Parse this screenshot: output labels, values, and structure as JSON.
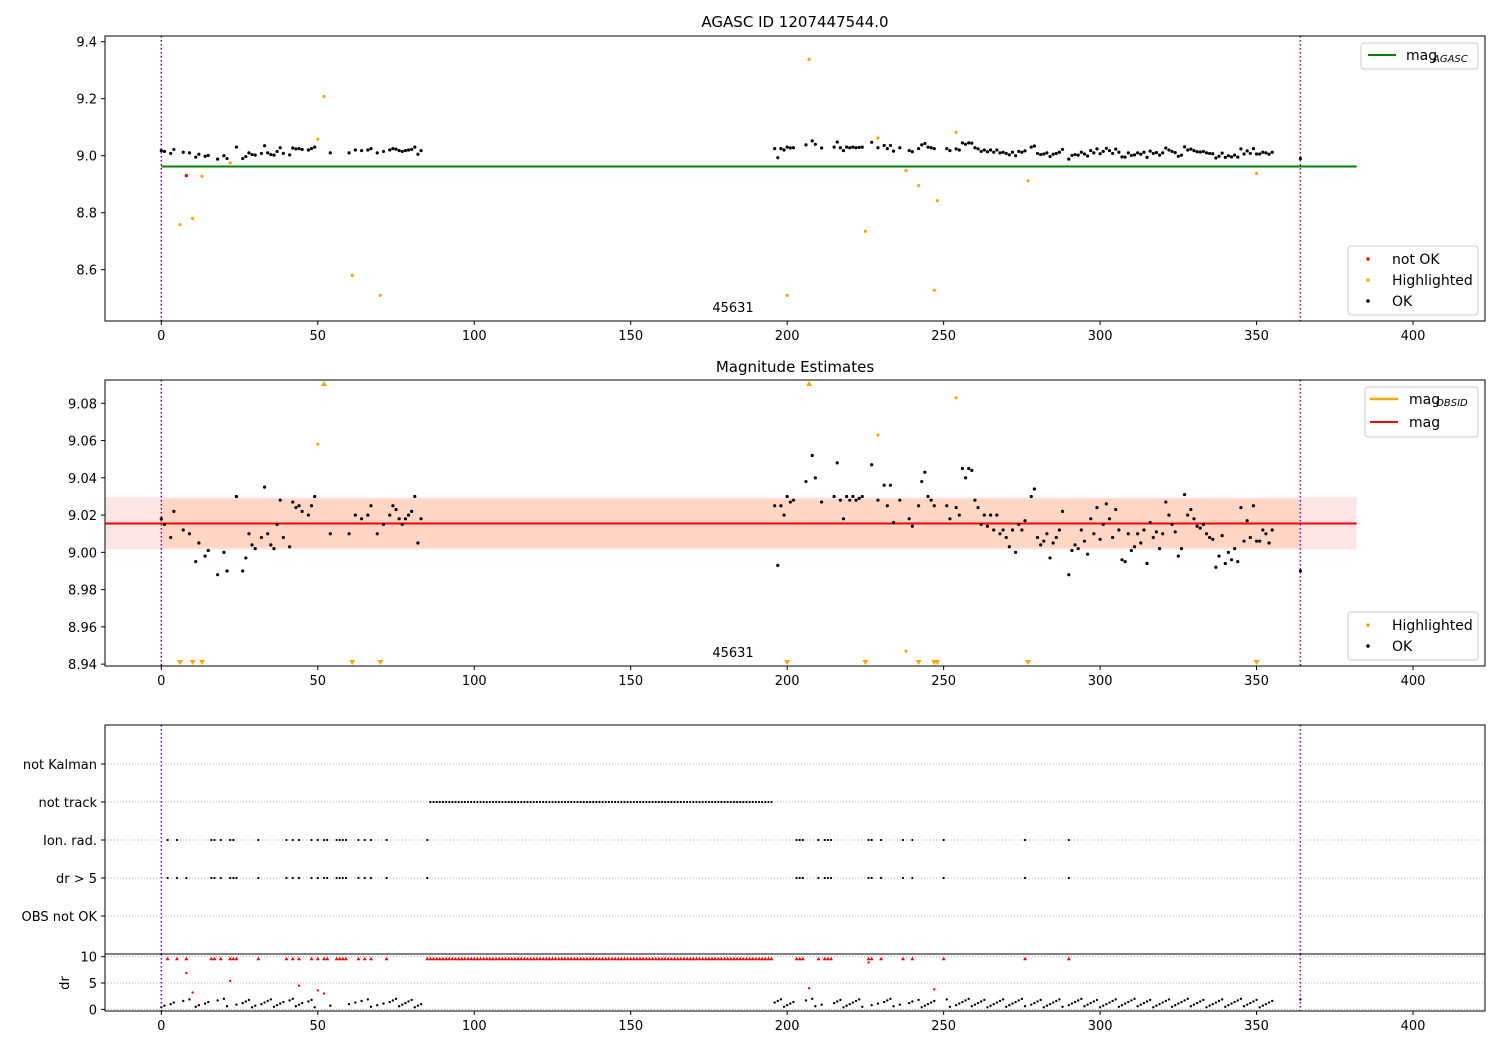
{
  "chart_data": [
    {
      "type": "scatter",
      "title": "AGASC ID 1207447544.0",
      "xlim": [
        -18,
        423
      ],
      "ylim": [
        8.42,
        9.42
      ],
      "xticks": [
        "0",
        "50",
        "100",
        "150",
        "200",
        "250",
        "300",
        "350",
        "400"
      ],
      "yticks": [
        "8.6",
        "8.8",
        "9.0",
        "9.2",
        "9.4"
      ],
      "annotation": "45631",
      "vlines": [
        0,
        364
      ],
      "mag_agasc": 8.962,
      "line_legend": {
        "label": "mag",
        "subscript": "AGASC",
        "color": "#008000"
      },
      "series_legend": [
        {
          "label": "not OK",
          "color": "#ff0000"
        },
        {
          "label": "Highlighted",
          "color": "#ffa500"
        },
        {
          "label": "OK",
          "color": "#000000"
        }
      ],
      "ok_points": [
        [
          0,
          9.018
        ],
        [
          1,
          9.015
        ],
        [
          3,
          9.008
        ],
        [
          4,
          9.022
        ],
        [
          7,
          9.012
        ],
        [
          9,
          9.01
        ],
        [
          11,
          8.995
        ],
        [
          12,
          9.005
        ],
        [
          14,
          8.998
        ],
        [
          15,
          9.001
        ],
        [
          18,
          8.988
        ],
        [
          20,
          9.0
        ],
        [
          21,
          8.99
        ],
        [
          24,
          9.03
        ],
        [
          26,
          8.99
        ],
        [
          27,
          8.997
        ],
        [
          28,
          9.01
        ],
        [
          29,
          9.004
        ],
        [
          30,
          9.002
        ],
        [
          32,
          9.008
        ],
        [
          33,
          9.035
        ],
        [
          34,
          9.01
        ],
        [
          35,
          9.004
        ],
        [
          36,
          9.002
        ],
        [
          37,
          9.015
        ],
        [
          38,
          9.028
        ],
        [
          39,
          9.008
        ],
        [
          41,
          9.003
        ],
        [
          42,
          9.027
        ],
        [
          43,
          9.024
        ],
        [
          44,
          9.025
        ],
        [
          45,
          9.022
        ],
        [
          47,
          9.02
        ],
        [
          48,
          9.025
        ],
        [
          49,
          9.03
        ],
        [
          54,
          9.01
        ],
        [
          60,
          9.01
        ],
        [
          62,
          9.02
        ],
        [
          64,
          9.018
        ],
        [
          66,
          9.02
        ],
        [
          67,
          9.025
        ],
        [
          69,
          9.01
        ],
        [
          71,
          9.015
        ],
        [
          73,
          9.02
        ],
        [
          74,
          9.025
        ],
        [
          75,
          9.023
        ],
        [
          76,
          9.018
        ],
        [
          77,
          9.015
        ],
        [
          78,
          9.018
        ],
        [
          79,
          9.02
        ],
        [
          80,
          9.022
        ],
        [
          81,
          9.03
        ],
        [
          82,
          9.005
        ],
        [
          83,
          9.018
        ],
        [
          196,
          9.025
        ],
        [
          197,
          8.993
        ],
        [
          198,
          9.025
        ],
        [
          199,
          9.02
        ],
        [
          200,
          9.03
        ],
        [
          201,
          9.027
        ],
        [
          202,
          9.028
        ],
        [
          206,
          9.038
        ],
        [
          208,
          9.052
        ],
        [
          209,
          9.04
        ],
        [
          211,
          9.027
        ],
        [
          215,
          9.03
        ],
        [
          216,
          9.048
        ],
        [
          217,
          9.028
        ],
        [
          218,
          9.018
        ],
        [
          219,
          9.03
        ],
        [
          220,
          9.028
        ],
        [
          221,
          9.03
        ],
        [
          222,
          9.028
        ],
        [
          223,
          9.029
        ],
        [
          224,
          9.03
        ],
        [
          227,
          9.047
        ],
        [
          229,
          9.028
        ],
        [
          231,
          9.036
        ],
        [
          232,
          9.025
        ],
        [
          233,
          9.036
        ],
        [
          234,
          9.016
        ],
        [
          236,
          9.028
        ],
        [
          239,
          9.018
        ],
        [
          240,
          9.014
        ],
        [
          242,
          9.025
        ],
        [
          243,
          9.038
        ],
        [
          244,
          9.043
        ],
        [
          245,
          9.03
        ],
        [
          246,
          9.028
        ],
        [
          247,
          9.025
        ],
        [
          251,
          9.025
        ],
        [
          252,
          9.018
        ],
        [
          254,
          9.024
        ],
        [
          255,
          9.02
        ],
        [
          256,
          9.045
        ],
        [
          257,
          9.04
        ],
        [
          258,
          9.045
        ],
        [
          259,
          9.044
        ],
        [
          260,
          9.028
        ],
        [
          261,
          9.024
        ],
        [
          262,
          9.015
        ],
        [
          263,
          9.02
        ],
        [
          264,
          9.014
        ],
        [
          265,
          9.02
        ],
        [
          266,
          9.012
        ],
        [
          267,
          9.02
        ],
        [
          268,
          9.01
        ],
        [
          269,
          9.012
        ],
        [
          270,
          9.008
        ],
        [
          271,
          9.003
        ],
        [
          272,
          9.012
        ],
        [
          273,
          9.0
        ],
        [
          274,
          9.015
        ],
        [
          275,
          9.012
        ],
        [
          276,
          9.017
        ],
        [
          278,
          9.03
        ],
        [
          279,
          9.034
        ],
        [
          280,
          9.008
        ],
        [
          281,
          9.004
        ],
        [
          282,
          9.006
        ],
        [
          283,
          9.01
        ],
        [
          284,
          8.997
        ],
        [
          285,
          9.005
        ],
        [
          286,
          9.008
        ],
        [
          287,
          9.012
        ],
        [
          288,
          9.022
        ],
        [
          290,
          8.988
        ],
        [
          291,
          9.001
        ],
        [
          292,
          9.004
        ],
        [
          293,
          9.002
        ],
        [
          294,
          9.012
        ],
        [
          295,
          9.006
        ],
        [
          296,
          8.999
        ],
        [
          297,
          9.018
        ],
        [
          298,
          9.01
        ],
        [
          299,
          9.024
        ],
        [
          300,
          9.007
        ],
        [
          301,
          9.015
        ],
        [
          302,
          9.026
        ],
        [
          303,
          9.018
        ],
        [
          304,
          9.008
        ],
        [
          305,
          9.023
        ],
        [
          306,
          9.012
        ],
        [
          307,
          8.996
        ],
        [
          308,
          8.995
        ],
        [
          309,
          9.01
        ],
        [
          310,
          9.001
        ],
        [
          311,
          9.003
        ],
        [
          312,
          9.01
        ],
        [
          313,
          9.005
        ],
        [
          314,
          9.012
        ],
        [
          315,
          8.994
        ],
        [
          316,
          9.016
        ],
        [
          317,
          9.008
        ],
        [
          318,
          9.011
        ],
        [
          319,
          9.002
        ],
        [
          320,
          9.01
        ],
        [
          321,
          9.027
        ],
        [
          322,
          9.02
        ],
        [
          323,
          9.015
        ],
        [
          324,
          9.011
        ],
        [
          325,
          8.998
        ],
        [
          326,
          9.002
        ],
        [
          327,
          9.031
        ],
        [
          328,
          9.02
        ],
        [
          329,
          9.023
        ],
        [
          330,
          9.018
        ],
        [
          331,
          9.014
        ],
        [
          332,
          9.013
        ],
        [
          333,
          9.015
        ],
        [
          334,
          9.01
        ],
        [
          335,
          9.008
        ],
        [
          336,
          9.007
        ],
        [
          337,
          8.992
        ],
        [
          338,
          8.998
        ],
        [
          339,
          9.009
        ],
        [
          340,
          8.994
        ],
        [
          341,
          9.0
        ],
        [
          342,
          8.996
        ],
        [
          343,
          9.002
        ],
        [
          344,
          8.995
        ],
        [
          345,
          9.024
        ],
        [
          346,
          9.006
        ],
        [
          347,
          9.017
        ],
        [
          348,
          9.008
        ],
        [
          349,
          9.025
        ],
        [
          350,
          9.006
        ],
        [
          351,
          9.006
        ],
        [
          352,
          9.012
        ],
        [
          353,
          9.01
        ],
        [
          354,
          9.005
        ],
        [
          355,
          9.012
        ],
        [
          364,
          8.99
        ]
      ],
      "highlighted_points": [
        [
          6,
          8.758
        ],
        [
          10,
          8.78
        ],
        [
          13,
          8.928
        ],
        [
          22,
          8.975
        ],
        [
          50,
          9.058
        ],
        [
          52,
          9.208
        ],
        [
          61,
          8.58
        ],
        [
          70,
          8.51
        ],
        [
          200,
          8.51
        ],
        [
          207,
          9.338
        ],
        [
          225,
          8.735
        ],
        [
          229,
          9.062
        ],
        [
          238,
          8.948
        ],
        [
          242,
          8.895
        ],
        [
          247,
          8.528
        ],
        [
          248,
          8.842
        ],
        [
          254,
          9.082
        ],
        [
          277,
          8.912
        ],
        [
          350,
          8.938
        ]
      ],
      "not_ok_points": [
        [
          8,
          8.93
        ]
      ]
    },
    {
      "type": "scatter",
      "title": "Magnitude Estimates",
      "xlim": [
        -18,
        423
      ],
      "ylim": [
        8.939,
        9.0925
      ],
      "xticks": [
        "0",
        "50",
        "100",
        "150",
        "200",
        "250",
        "300",
        "350",
        "400"
      ],
      "yticks": [
        "8.94",
        "8.96",
        "8.98",
        "9.00",
        "9.02",
        "9.04",
        "9.06",
        "9.08"
      ],
      "annotation": "45631",
      "vlines": [
        0,
        364
      ],
      "mag": 9.0155,
      "mag_band": [
        9.0025,
        9.0285
      ],
      "mag_obsid_band": [
        9.0015,
        9.0295
      ],
      "line_legend": [
        {
          "label": "mag",
          "subscript": "OBSID",
          "color": "#ffa500"
        },
        {
          "label": "mag",
          "subscript": "",
          "color": "#ff0000"
        }
      ],
      "series_legend": [
        {
          "label": "Highlighted",
          "color": "#ffa500"
        },
        {
          "label": "OK",
          "color": "#000000"
        }
      ],
      "ok_points": "same as panel 1 ok_points",
      "highlighted_points": [
        [
          50,
          9.058
        ],
        [
          229,
          9.063
        ],
        [
          238,
          8.947
        ],
        [
          254,
          9.083
        ]
      ],
      "clipped_low_x": [
        6,
        10,
        13,
        61,
        70,
        200,
        225,
        242,
        247,
        248,
        277,
        350
      ],
      "clipped_high_x": [
        52,
        207
      ]
    },
    {
      "type": "scatter",
      "title": "",
      "xlim": [
        -18,
        423
      ],
      "categories": [
        "not Kalman",
        "not track",
        "Ion. rad.",
        "dr > 5",
        "OBS not OK"
      ],
      "vlines": [
        0,
        364
      ],
      "not_track_range": [
        86,
        195
      ],
      "ion_rad_x": [
        2,
        5,
        16,
        17,
        19,
        22,
        23,
        31,
        40,
        42,
        44,
        48,
        50,
        52,
        53,
        56,
        57,
        58,
        59,
        63,
        65,
        67,
        72,
        85,
        203,
        204,
        205,
        210,
        212,
        213,
        214,
        226,
        227,
        230,
        237,
        240,
        250,
        276,
        290
      ],
      "dr_gt5_x": [
        2,
        5,
        8,
        16,
        17,
        19,
        22,
        23,
        24,
        31,
        40,
        42,
        44,
        48,
        50,
        52,
        53,
        56,
        57,
        58,
        59,
        63,
        65,
        67,
        72,
        85,
        203,
        204,
        205,
        210,
        212,
        213,
        214,
        226,
        227,
        230,
        237,
        240,
        250,
        276,
        290
      ]
    },
    {
      "type": "scatter",
      "ylabel": "dr",
      "xlim": [
        -18,
        423
      ],
      "ylim": [
        -0.3,
        10.5
      ],
      "xticks": [
        "0",
        "50",
        "100",
        "150",
        "200",
        "250",
        "300",
        "350",
        "400"
      ],
      "yticks": [
        "0",
        "5",
        "10"
      ],
      "vlines": [
        0,
        364
      ]
    }
  ]
}
